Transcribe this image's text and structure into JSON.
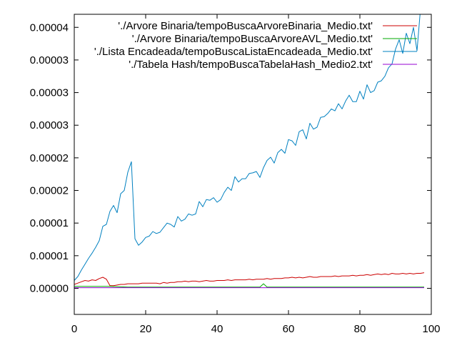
{
  "chart_data": {
    "type": "line",
    "title": "",
    "xlabel": "",
    "ylabel": "",
    "xlim": [
      0,
      100
    ],
    "ylim": [
      -4e-06,
      4.2e-05
    ],
    "grid": false,
    "legend_position": "top-right",
    "x_ticks": [
      0,
      20,
      40,
      60,
      80,
      100
    ],
    "x_tick_labels": [
      "0",
      "20",
      "40",
      "60",
      "80",
      "100"
    ],
    "y_ticks": [
      0,
      5e-06,
      1e-05,
      1.5e-05,
      2e-05,
      2.5e-05,
      3e-05,
      3.5e-05,
      4e-05
    ],
    "y_tick_labels": [
      "0.00000",
      "0.00001",
      "0.00001",
      "0.00002",
      "0.00002",
      "0.00003",
      "0.00003",
      "0.00003",
      "0.00004"
    ],
    "series": [
      {
        "name": "'./Arvore Binaria/tempoBuscaArvoreBinaria_Medio.txt'",
        "color": "#cc0000",
        "x": [
          0,
          1,
          2,
          3,
          4,
          5,
          6,
          7,
          8,
          9,
          10,
          11,
          12,
          13,
          14,
          15,
          16,
          17,
          18,
          19,
          20,
          21,
          22,
          23,
          24,
          25,
          26,
          27,
          28,
          29,
          30,
          31,
          32,
          33,
          34,
          35,
          36,
          37,
          38,
          39,
          40,
          41,
          42,
          43,
          44,
          45,
          46,
          47,
          48,
          49,
          50,
          51,
          52,
          53,
          54,
          55,
          56,
          57,
          58,
          59,
          60,
          61,
          62,
          63,
          64,
          65,
          66,
          67,
          68,
          69,
          70,
          71,
          72,
          73,
          74,
          75,
          76,
          77,
          78,
          79,
          80,
          81,
          82,
          83,
          84,
          85,
          86,
          87,
          88,
          89,
          90,
          91,
          92,
          93,
          94,
          95,
          96,
          97,
          98
        ],
        "y": [
          6e-07,
          8e-07,
          1e-06,
          1.2e-06,
          1.1e-06,
          1.3e-06,
          1.2e-06,
          1.5e-06,
          1.7e-06,
          1.4e-06,
          4e-07,
          4e-07,
          5e-07,
          6e-07,
          6e-07,
          7e-07,
          7e-07,
          7e-07,
          7e-07,
          8e-07,
          8e-07,
          8e-07,
          8e-07,
          8e-07,
          7e-07,
          9e-07,
          8e-07,
          9e-07,
          9e-07,
          1e-06,
          1e-06,
          1.1e-06,
          1e-06,
          1.1e-06,
          1.1e-06,
          1e-06,
          1.1e-06,
          1.2e-06,
          1.1e-06,
          1.1e-06,
          1.2e-06,
          1.2e-06,
          1.2e-06,
          1.3e-06,
          1.2e-06,
          1.3e-06,
          1.3e-06,
          1.3e-06,
          1.3e-06,
          1.4e-06,
          1.3e-06,
          1.4e-06,
          1.4e-06,
          1.4e-06,
          1.5e-06,
          1.4e-06,
          1.5e-06,
          1.5e-06,
          1.5e-06,
          1.6e-06,
          1.6e-06,
          1.7e-06,
          1.6e-06,
          1.7e-06,
          1.6e-06,
          1.7e-06,
          1.8e-06,
          1.7e-06,
          1.7e-06,
          1.8e-06,
          1.8e-06,
          1.8e-06,
          1.8e-06,
          1.9e-06,
          1.8e-06,
          1.9e-06,
          1.9e-06,
          1.9e-06,
          2e-06,
          1.9e-06,
          2e-06,
          2e-06,
          2.1e-06,
          2e-06,
          2.1e-06,
          2.2e-06,
          2.1e-06,
          2.2e-06,
          2.1e-06,
          2.3e-06,
          2.2e-06,
          2.2e-06,
          2.3e-06,
          2.2e-06,
          2.3e-06,
          2.2e-06,
          2.3e-06,
          2.3e-06,
          2.4e-06
        ]
      },
      {
        "name": "'./Arvore Binaria/tempoBuscaArvoreAVL_Medio.txt'",
        "color": "#00aa00",
        "x": [
          0,
          5,
          10,
          15,
          20,
          25,
          30,
          35,
          40,
          45,
          50,
          52,
          53,
          54,
          55,
          60,
          65,
          70,
          75,
          80,
          85,
          90,
          95,
          98
        ],
        "y": [
          3e-07,
          3e-07,
          3e-07,
          2e-07,
          2e-07,
          2e-07,
          2e-07,
          2e-07,
          2e-07,
          2e-07,
          2e-07,
          2e-07,
          7e-07,
          2e-07,
          2e-07,
          2e-07,
          2e-07,
          2e-07,
          2e-07,
          2e-07,
          2e-07,
          2e-07,
          2e-07,
          2e-07
        ]
      },
      {
        "name": "'./Lista Encadeada/tempoBuscaListaEncadeada_Medio.txt'",
        "color": "#0080c0",
        "x": [
          0,
          1,
          2,
          3,
          4,
          5,
          6,
          7,
          8,
          9,
          10,
          11,
          12,
          13,
          14,
          15,
          16,
          17,
          18,
          19,
          20,
          21,
          22,
          23,
          24,
          25,
          26,
          27,
          28,
          29,
          30,
          31,
          32,
          33,
          34,
          35,
          36,
          37,
          38,
          39,
          40,
          41,
          42,
          43,
          44,
          45,
          46,
          47,
          48,
          49,
          50,
          51,
          52,
          53,
          54,
          55,
          56,
          57,
          58,
          59,
          60,
          61,
          62,
          63,
          64,
          65,
          66,
          67,
          68,
          69,
          70,
          71,
          72,
          73,
          74,
          75,
          76,
          77,
          78,
          79,
          80,
          81,
          82,
          83,
          84,
          85,
          86,
          87,
          88,
          89,
          90,
          91,
          92,
          93,
          94,
          95,
          96,
          97,
          98
        ],
        "y": [
          1.2e-06,
          1.8e-06,
          2.8e-06,
          3.7e-06,
          4.6e-06,
          5.4e-06,
          6.3e-06,
          7.3e-06,
          9.5e-06,
          9.8e-06,
          1.18e-05,
          1.27e-05,
          1.16e-05,
          1.45e-05,
          1.5e-05,
          1.78e-05,
          1.94e-05,
          7.6e-06,
          6.6e-06,
          7.1e-06,
          7.8e-06,
          8e-06,
          8.7e-06,
          8.4e-06,
          8.6e-06,
          9.3e-06,
          1e-05,
          9.8e-06,
          9.4e-06,
          1.1e-05,
          1.03e-05,
          1.06e-05,
          1.14e-05,
          1.12e-05,
          1.14e-05,
          1.33e-05,
          1.25e-05,
          1.36e-05,
          1.35e-05,
          1.39e-05,
          1.32e-05,
          1.36e-05,
          1.47e-05,
          1.55e-05,
          1.5e-05,
          1.71e-05,
          1.63e-05,
          1.68e-05,
          1.68e-05,
          1.76e-05,
          1.77e-05,
          1.79e-05,
          1.7e-05,
          1.85e-05,
          1.96e-05,
          2.01e-05,
          1.92e-05,
          2.08e-05,
          2.13e-05,
          2.07e-05,
          2.28e-05,
          2.26e-05,
          2.19e-05,
          2.4e-05,
          2.43e-05,
          2.29e-05,
          2.53e-05,
          2.44e-05,
          2.47e-05,
          2.62e-05,
          2.63e-05,
          2.68e-05,
          2.75e-05,
          2.72e-05,
          2.83e-05,
          2.75e-05,
          2.87e-05,
          2.96e-05,
          2.86e-05,
          2.86e-05,
          3.02e-05,
          2.9e-05,
          3.12e-05,
          3e-05,
          3.03e-05,
          3.16e-05,
          3.18e-05,
          3.25e-05,
          3.38e-05,
          3.44e-05,
          3.67e-05,
          3.81e-05,
          3.6e-05,
          3.91e-05,
          3.75e-05,
          4e-05,
          3.64e-05,
          4.3e-05,
          4.3e-05
        ]
      },
      {
        "name": "'./Tabela Hash/tempoBuscaTabelaHash_Medio2.txt'",
        "color": "#9400d3",
        "x": [
          0,
          10,
          20,
          30,
          40,
          50,
          60,
          70,
          80,
          90,
          98
        ],
        "y": [
          1e-07,
          1e-07,
          1e-07,
          1e-07,
          1e-07,
          1e-07,
          1e-07,
          1e-07,
          1e-07,
          1e-07,
          1e-07
        ]
      }
    ]
  }
}
